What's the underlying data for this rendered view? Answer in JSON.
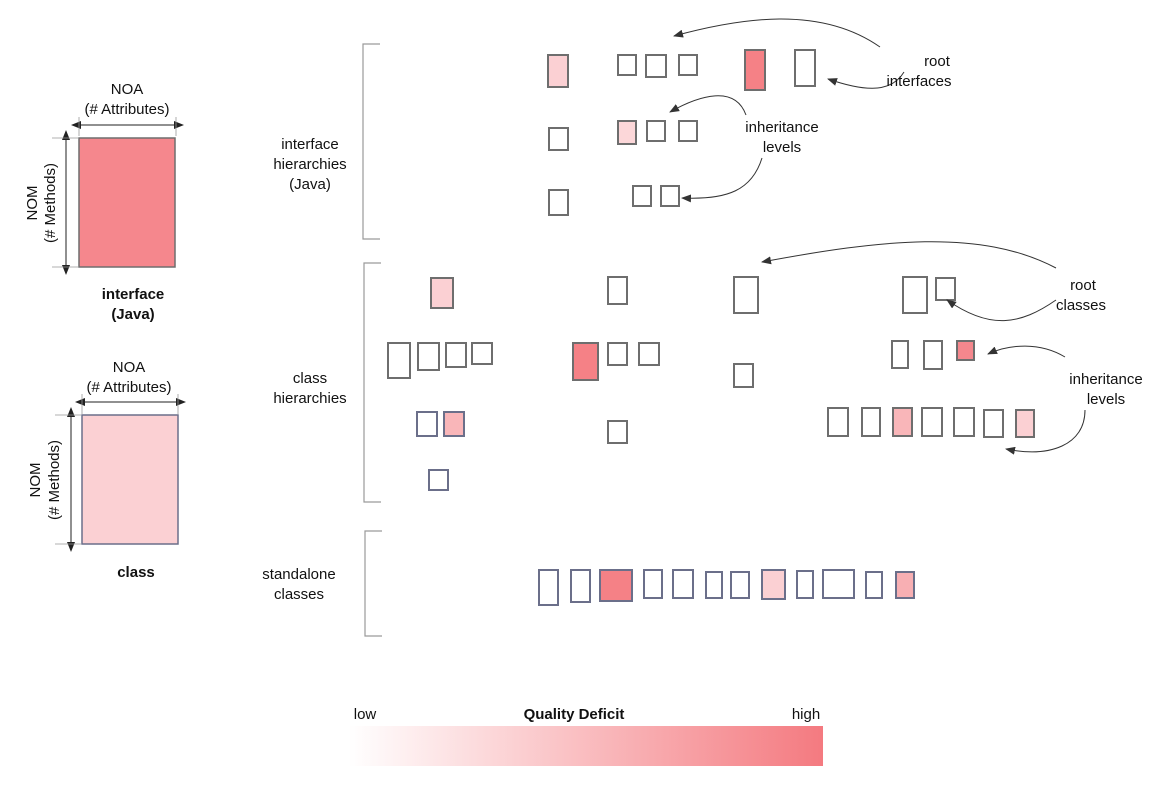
{
  "colors": {
    "low": "#ffffff",
    "high": "#f47a80",
    "stroke_dark": "#6b6f8a",
    "stroke_gray": "#6e6e6e"
  },
  "legend": {
    "interface": {
      "noa": "NOA",
      "noa_sub": "(# Attributes)",
      "nom": "NOM",
      "nom_sub": "(# Methods)",
      "title_line1": "interface",
      "title_line2": "(Java)",
      "fill_level": 0.9
    },
    "class": {
      "noa": "NOA",
      "noa_sub": "(# Attributes)",
      "nom": "NOM",
      "nom_sub": "(# Methods)",
      "title": "class",
      "fill_level": 0.35
    }
  },
  "groups": {
    "interfaces": {
      "line1": "interface",
      "line2": "hierarchies",
      "line3": "(Java)"
    },
    "classes": {
      "line1": "class",
      "line2": "hierarchies"
    },
    "standalone": {
      "line1": "standalone",
      "line2": "classes"
    }
  },
  "annotations": {
    "root_interfaces": {
      "line1": "root",
      "line2": "interfaces"
    },
    "inheritance_levels_interfaces": {
      "line1": "inheritance",
      "line2": "levels"
    },
    "root_classes": {
      "line1": "root",
      "line2": "classes"
    },
    "inheritance_levels_classes": {
      "line1": "inheritance",
      "line2": "levels"
    }
  },
  "colorbar": {
    "title": "Quality Deficit",
    "low_label": "low",
    "high_label": "high"
  },
  "quality_levels": {
    "interface_hierarchies": [
      [
        0.35,
        0,
        0,
        0,
        0.95,
        0
      ],
      [
        0,
        0.3,
        0,
        0
      ],
      [
        0,
        0,
        0
      ]
    ],
    "class_hierarchies": [
      [
        0.35,
        0,
        0,
        0,
        0,
        0
      ],
      [
        0,
        0,
        0,
        0,
        0.95,
        0,
        0,
        0,
        0,
        0,
        0.9,
        0
      ],
      [
        0,
        0.55,
        0,
        0,
        0,
        0.55,
        0,
        0,
        0,
        0.35,
        0
      ],
      [
        0
      ]
    ],
    "standalone_classes": [
      0,
      0,
      0.95,
      0,
      0,
      0,
      0,
      0.35,
      0,
      0,
      0,
      0.6
    ]
  }
}
